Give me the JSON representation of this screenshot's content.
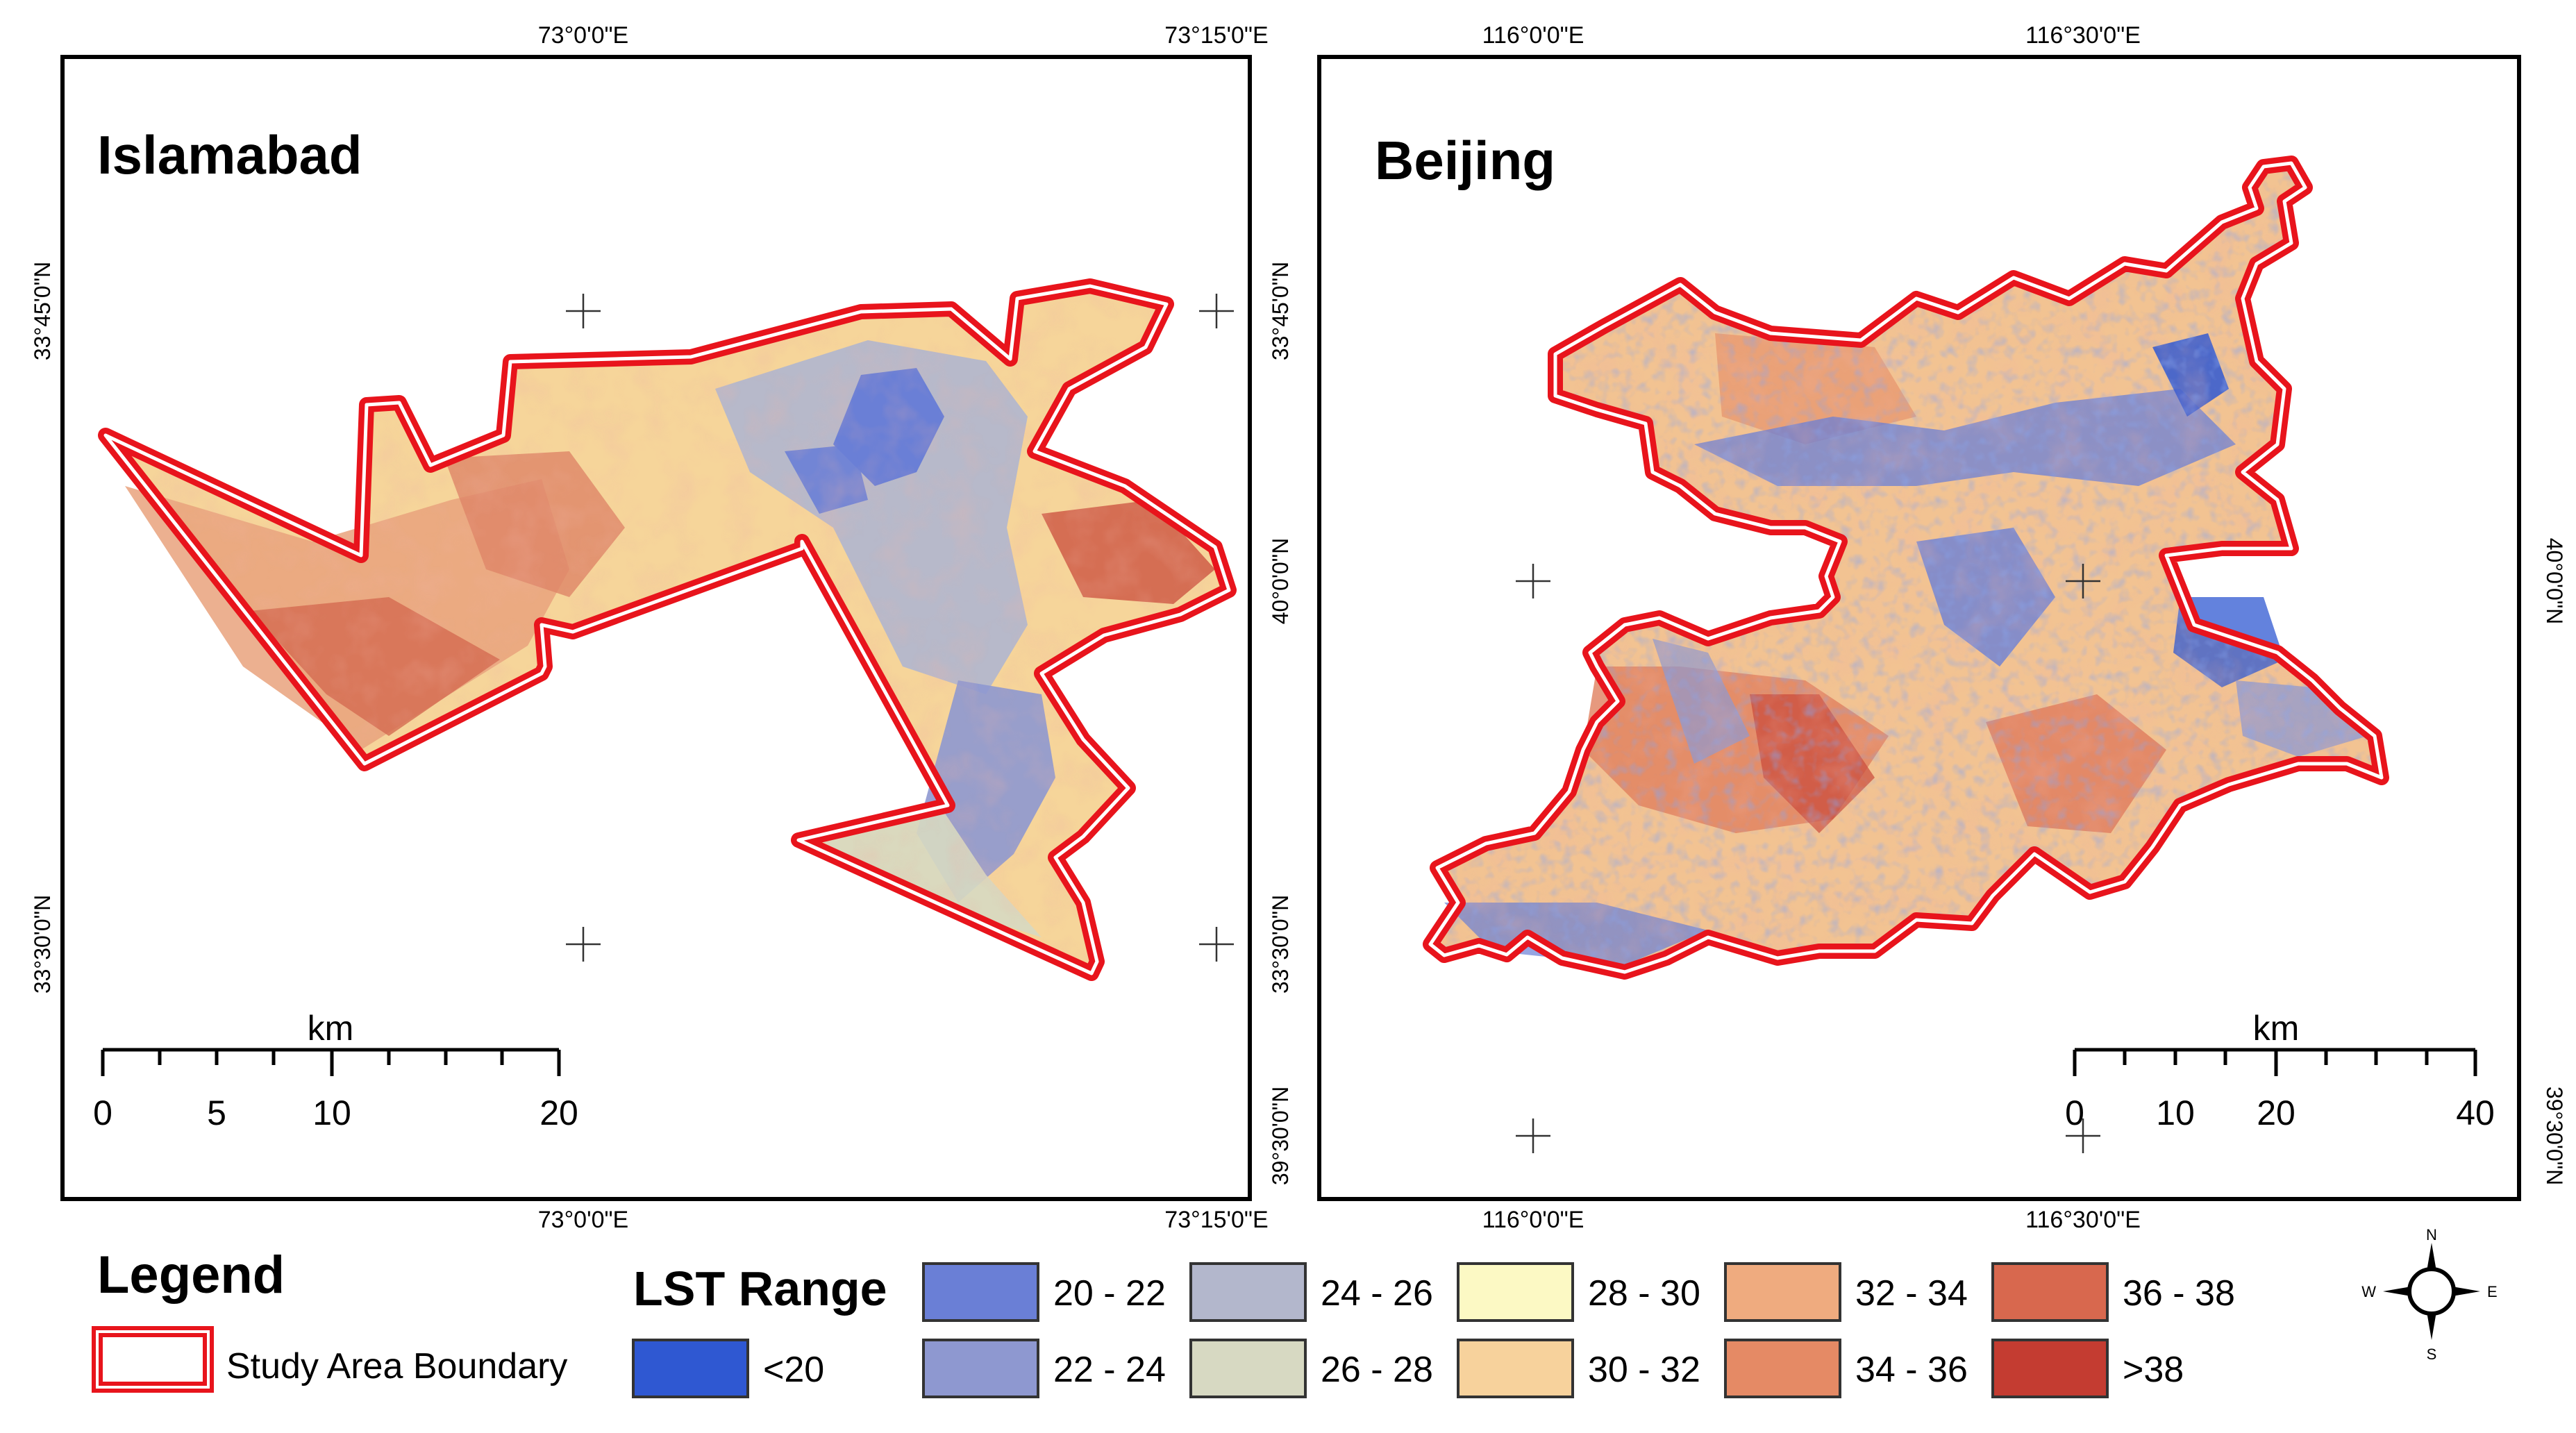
{
  "maps": [
    {
      "name": "Islamabad",
      "lon_labels": [
        "73°0'0\"E",
        "73°15'0\"E"
      ],
      "lat_labels": [
        "33°45'0\"N",
        "33°30'0\"N"
      ],
      "scale": {
        "unit": "km",
        "ticks": [
          "0",
          "5",
          "10",
          "20"
        ]
      }
    },
    {
      "name": "Beijing",
      "lon_labels": [
        "116°0'0\"E",
        "116°30'0\"E"
      ],
      "lat_labels": [
        "40°0'0\"N",
        "39°30'0\"N"
      ],
      "lat_labels_left": [
        "33°45'0\"N",
        "33°30'0\"N"
      ],
      "scale": {
        "unit": "km",
        "ticks": [
          "0",
          "10",
          "20",
          "40"
        ]
      }
    }
  ],
  "legend": {
    "title": "Legend",
    "boundary_label": "Study Area Boundary",
    "boundary_color": "#e8141c",
    "lst_title": "LST Range",
    "classes": [
      {
        "label": "<20",
        "color": "#2f58d2"
      },
      {
        "label": "20 - 22",
        "color": "#6a7fd6"
      },
      {
        "label": "22 - 24",
        "color": "#8e98d0"
      },
      {
        "label": "24 - 26",
        "color": "#b3b7cc"
      },
      {
        "label": "26 - 28",
        "color": "#d7d9c2"
      },
      {
        "label": "28 - 30",
        "color": "#fcf9c4"
      },
      {
        "label": "30 - 32",
        "color": "#f7d29c"
      },
      {
        "label": "32 - 34",
        "color": "#efab7f"
      },
      {
        "label": "34 - 36",
        "color": "#e58a65"
      },
      {
        "label": "36 - 38",
        "color": "#d8684e"
      },
      {
        "label": ">38",
        "color": "#c43c31"
      }
    ]
  },
  "north_arrow": {
    "n": "N",
    "s": "S",
    "e": "E",
    "w": "W"
  }
}
